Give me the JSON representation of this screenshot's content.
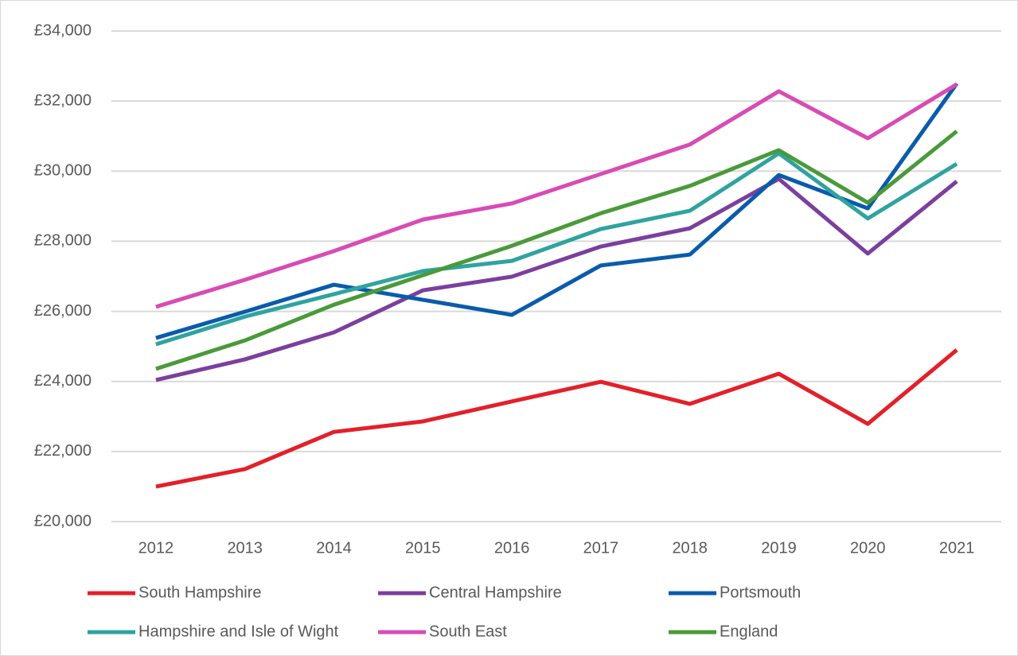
{
  "chart_data": {
    "type": "line",
    "categories": [
      "2012",
      "2013",
      "2014",
      "2015",
      "2016",
      "2017",
      "2018",
      "2019",
      "2020",
      "2021"
    ],
    "series": [
      {
        "name": "South Hampshire",
        "color": "#e3202a",
        "values": [
          21000,
          21500,
          22560,
          22860,
          23430,
          23990,
          23360,
          24220,
          22790,
          24900
        ]
      },
      {
        "name": "Central Hampshire",
        "color": "#7b3f9e",
        "values": [
          24040,
          24630,
          25400,
          26600,
          26990,
          27850,
          28370,
          29780,
          27650,
          29710
        ]
      },
      {
        "name": "Portsmouth",
        "color": "#0a5bab",
        "values": [
          25240,
          25990,
          26760,
          26330,
          25900,
          27310,
          27620,
          29890,
          28940,
          32500
        ]
      },
      {
        "name": "Hampshire and Isle of Wight",
        "color": "#2fa3a0",
        "values": [
          25060,
          25850,
          26490,
          27150,
          27440,
          28350,
          28870,
          30510,
          28650,
          30210
        ]
      },
      {
        "name": "South East",
        "color": "#d84bb5",
        "values": [
          26130,
          26900,
          27720,
          28620,
          29080,
          29920,
          30760,
          32280,
          30940,
          32480
        ]
      },
      {
        "name": "England",
        "color": "#4a9a3a",
        "values": [
          24360,
          25170,
          26190,
          27030,
          27870,
          28800,
          29580,
          30600,
          29100,
          31140
        ]
      }
    ],
    "ylim": [
      20000,
      34000
    ],
    "yticks": [
      {
        "value": 20000,
        "label": "£20,000"
      },
      {
        "value": 22000,
        "label": "£22,000"
      },
      {
        "value": 24000,
        "label": "£24,000"
      },
      {
        "value": 26000,
        "label": "£26,000"
      },
      {
        "value": 28000,
        "label": "£28,000"
      },
      {
        "value": 30000,
        "label": "£30,000"
      },
      {
        "value": 32000,
        "label": "£32,000"
      },
      {
        "value": 34000,
        "label": "£34,000"
      }
    ],
    "grid": true,
    "legend": "bottom"
  }
}
